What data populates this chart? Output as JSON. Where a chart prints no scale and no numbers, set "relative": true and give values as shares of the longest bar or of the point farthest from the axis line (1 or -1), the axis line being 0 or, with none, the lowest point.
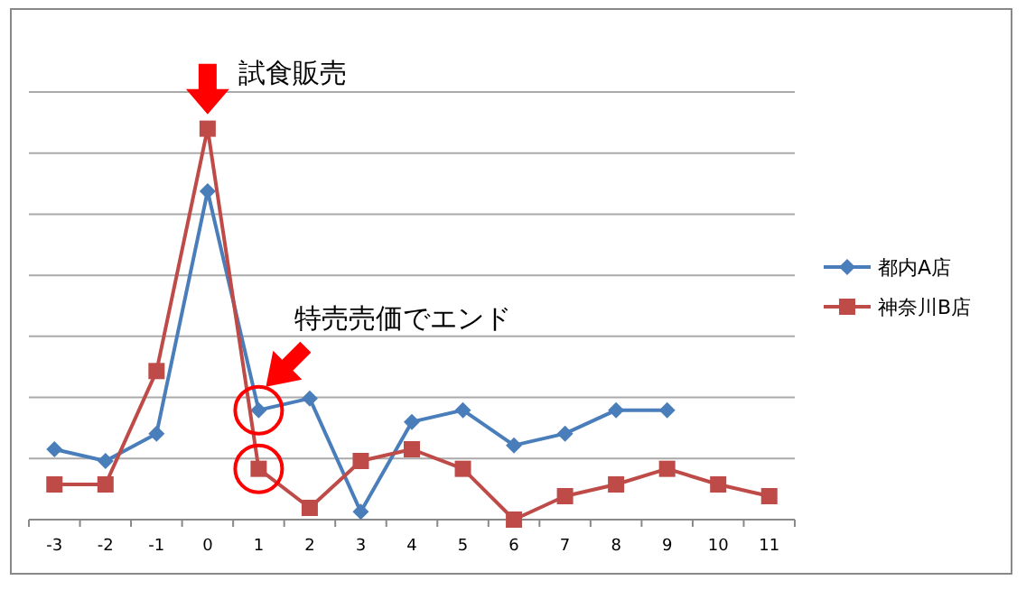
{
  "chart_data": {
    "type": "line",
    "relative": true,
    "grid": "y",
    "legend": "right",
    "line_style": "solid",
    "categories": [
      "-3",
      "-2",
      "-1",
      "0",
      "1",
      "2",
      "3",
      "4",
      "5",
      "6",
      "7",
      "8",
      "9",
      "10",
      "11"
    ],
    "series": [
      {
        "name": "都内A店",
        "color": "#4a7ebb",
        "marker": "diamond",
        "values": [
          0.18,
          0.15,
          0.22,
          0.84,
          0.28,
          0.31,
          0.02,
          0.25,
          0.28,
          0.19,
          0.22,
          0.28,
          0.28,
          null,
          null
        ]
      },
      {
        "name": "神奈川B店",
        "color": "#be4b48",
        "marker": "square",
        "values": [
          0.09,
          0.09,
          0.38,
          1,
          0.13,
          0.03,
          0.15,
          0.18,
          0.13,
          0,
          0.06,
          0.09,
          0.13,
          0.09,
          0.06
        ]
      }
    ],
    "annotations": [
      {
        "text": "試食販売",
        "x": "0",
        "y": 1
      },
      "特売売価でエンド"
    ]
  }
}
